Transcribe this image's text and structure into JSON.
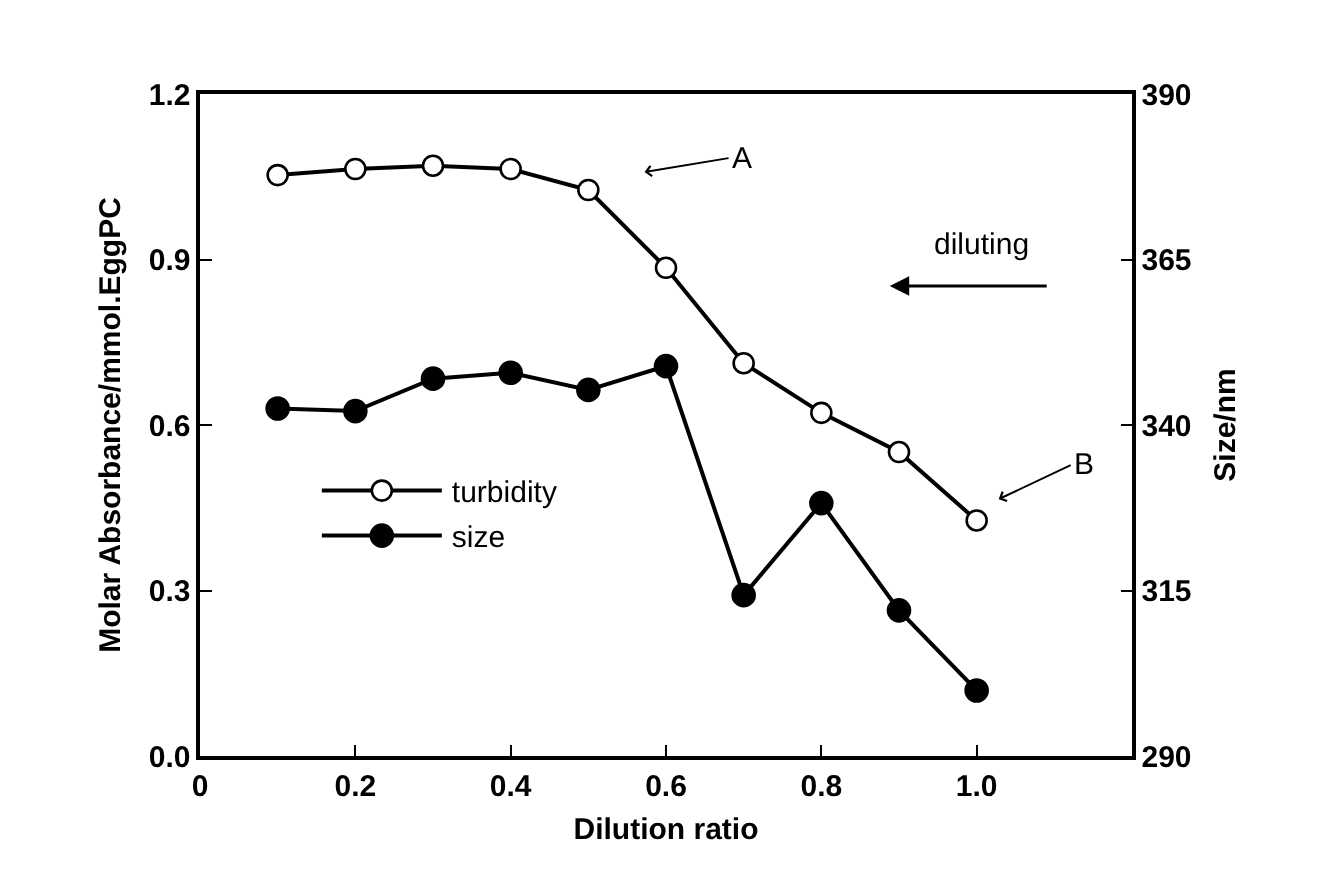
{
  "chart_data": {
    "type": "line",
    "xlabel": "Dilution ratio",
    "ylabel": "Molar Absorbance/mmol.EggPC",
    "y2label": "Size/nm",
    "x": [
      0.1,
      0.2,
      0.3,
      0.4,
      0.5,
      0.6,
      0.7,
      0.8,
      0.9,
      1.0
    ],
    "series": [
      {
        "name": "turbidity",
        "color": "#000000",
        "values": [
          1.053,
          1.064,
          1.07,
          1.064,
          1.026,
          0.885,
          0.712,
          0.622,
          0.551,
          0.427
        ]
      },
      {
        "name": "size",
        "color": "#000000",
        "axis": "y2",
        "values": [
          342.5,
          342.1,
          347.0,
          347.9,
          345.3,
          348.9,
          314.3,
          328.2,
          312.0,
          299.9
        ]
      }
    ],
    "xlim": [
      0,
      1.2
    ],
    "xticks": [
      {
        "value": 0,
        "label": "0"
      },
      0.2,
      0.4,
      0.6,
      0.8,
      {
        "value": 1.0,
        "label": "1.0"
      }
    ],
    "ylim": [
      0,
      1.2
    ],
    "yticks": [
      {
        "value": 0,
        "label": "0.0"
      },
      0.3,
      0.6,
      0.9,
      1.2
    ],
    "y2lim": [
      290,
      390
    ],
    "y2ticks": [
      290,
      315,
      340,
      365,
      390
    ],
    "annotations": [
      "A",
      "B",
      "diluting"
    ],
    "legend": "bottom left",
    "marker": "circle",
    "line_style": "solid"
  }
}
